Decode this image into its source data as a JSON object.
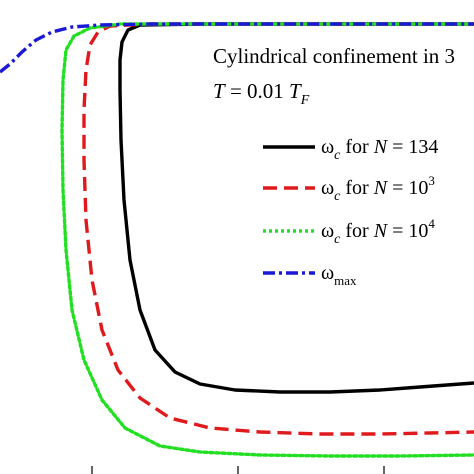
{
  "chart_data": {
    "type": "line",
    "annotation": {
      "line1": "Cylindrical confinement in 3",
      "line2_prefix": "T",
      "line2_mid": " = 0.01 ",
      "line2_var": "T",
      "line2_sub": "F"
    },
    "legend": [
      {
        "omega": "ω",
        "sub": "c",
        "text": " for ",
        "var": "N",
        "eq": " = 134",
        "sup": "",
        "color": "#000000",
        "dash": "solid"
      },
      {
        "omega": "ω",
        "sub": "c",
        "text": " for ",
        "var": "N",
        "eq": " = 10",
        "sup": "3",
        "color": "#e0191c",
        "dash": "dashed"
      },
      {
        "omega": "ω",
        "sub": "c",
        "text": " for ",
        "var": "N",
        "eq": " = 10",
        "sup": "4",
        "color": "#21e021",
        "dash": "dotted"
      },
      {
        "omega": "ω",
        "sub": "max",
        "text": "",
        "var": "",
        "eq": "",
        "sup": "",
        "color": "#1a1ad6",
        "dash": "dashdot"
      }
    ],
    "series": [
      {
        "name": "ωc for N = 134",
        "color": "#000000",
        "dash": "solid",
        "points": [
          [
            474,
            24
          ],
          [
            200,
            24
          ],
          [
            140,
            25
          ],
          [
            128,
            30
          ],
          [
            122,
            42
          ],
          [
            120,
            60
          ],
          [
            120,
            90
          ],
          [
            121,
            140
          ],
          [
            124,
            200
          ],
          [
            130,
            260
          ],
          [
            140,
            310
          ],
          [
            155,
            350
          ],
          [
            175,
            372
          ],
          [
            200,
            384
          ],
          [
            235,
            390
          ],
          [
            280,
            392
          ],
          [
            330,
            392
          ],
          [
            380,
            390
          ],
          [
            420,
            387
          ],
          [
            474,
            383
          ]
        ]
      },
      {
        "name": "ωc for N = 10^3",
        "color": "#e0191c",
        "dash": "dashed",
        "points": [
          [
            474,
            24
          ],
          [
            150,
            24
          ],
          [
            110,
            26
          ],
          [
            98,
            32
          ],
          [
            90,
            45
          ],
          [
            86,
            70
          ],
          [
            84,
            110
          ],
          [
            84,
            160
          ],
          [
            86,
            220
          ],
          [
            92,
            280
          ],
          [
            102,
            330
          ],
          [
            118,
            370
          ],
          [
            140,
            398
          ],
          [
            170,
            418
          ],
          [
            210,
            428
          ],
          [
            260,
            432
          ],
          [
            320,
            434
          ],
          [
            380,
            434
          ],
          [
            430,
            433
          ],
          [
            474,
            432
          ]
        ]
      },
      {
        "name": "ωc for N = 10^4",
        "color": "#21e021",
        "dash": "dotted",
        "points": [
          [
            474,
            24
          ],
          [
            120,
            24
          ],
          [
            90,
            28
          ],
          [
            74,
            36
          ],
          [
            66,
            50
          ],
          [
            63,
            80
          ],
          [
            62,
            130
          ],
          [
            63,
            190
          ],
          [
            66,
            250
          ],
          [
            72,
            310
          ],
          [
            84,
            360
          ],
          [
            102,
            400
          ],
          [
            125,
            428
          ],
          [
            160,
            446
          ],
          [
            200,
            452
          ],
          [
            260,
            455
          ],
          [
            330,
            456
          ],
          [
            400,
            456
          ],
          [
            474,
            455
          ]
        ]
      },
      {
        "name": "ωmax",
        "color": "#1a1ad6",
        "dash": "dashdot",
        "points": [
          [
            0,
            72
          ],
          [
            10,
            64
          ],
          [
            22,
            52
          ],
          [
            36,
            40
          ],
          [
            52,
            32
          ],
          [
            72,
            27
          ],
          [
            100,
            25
          ],
          [
            150,
            24
          ],
          [
            300,
            24
          ],
          [
            474,
            24
          ]
        ]
      }
    ]
  }
}
